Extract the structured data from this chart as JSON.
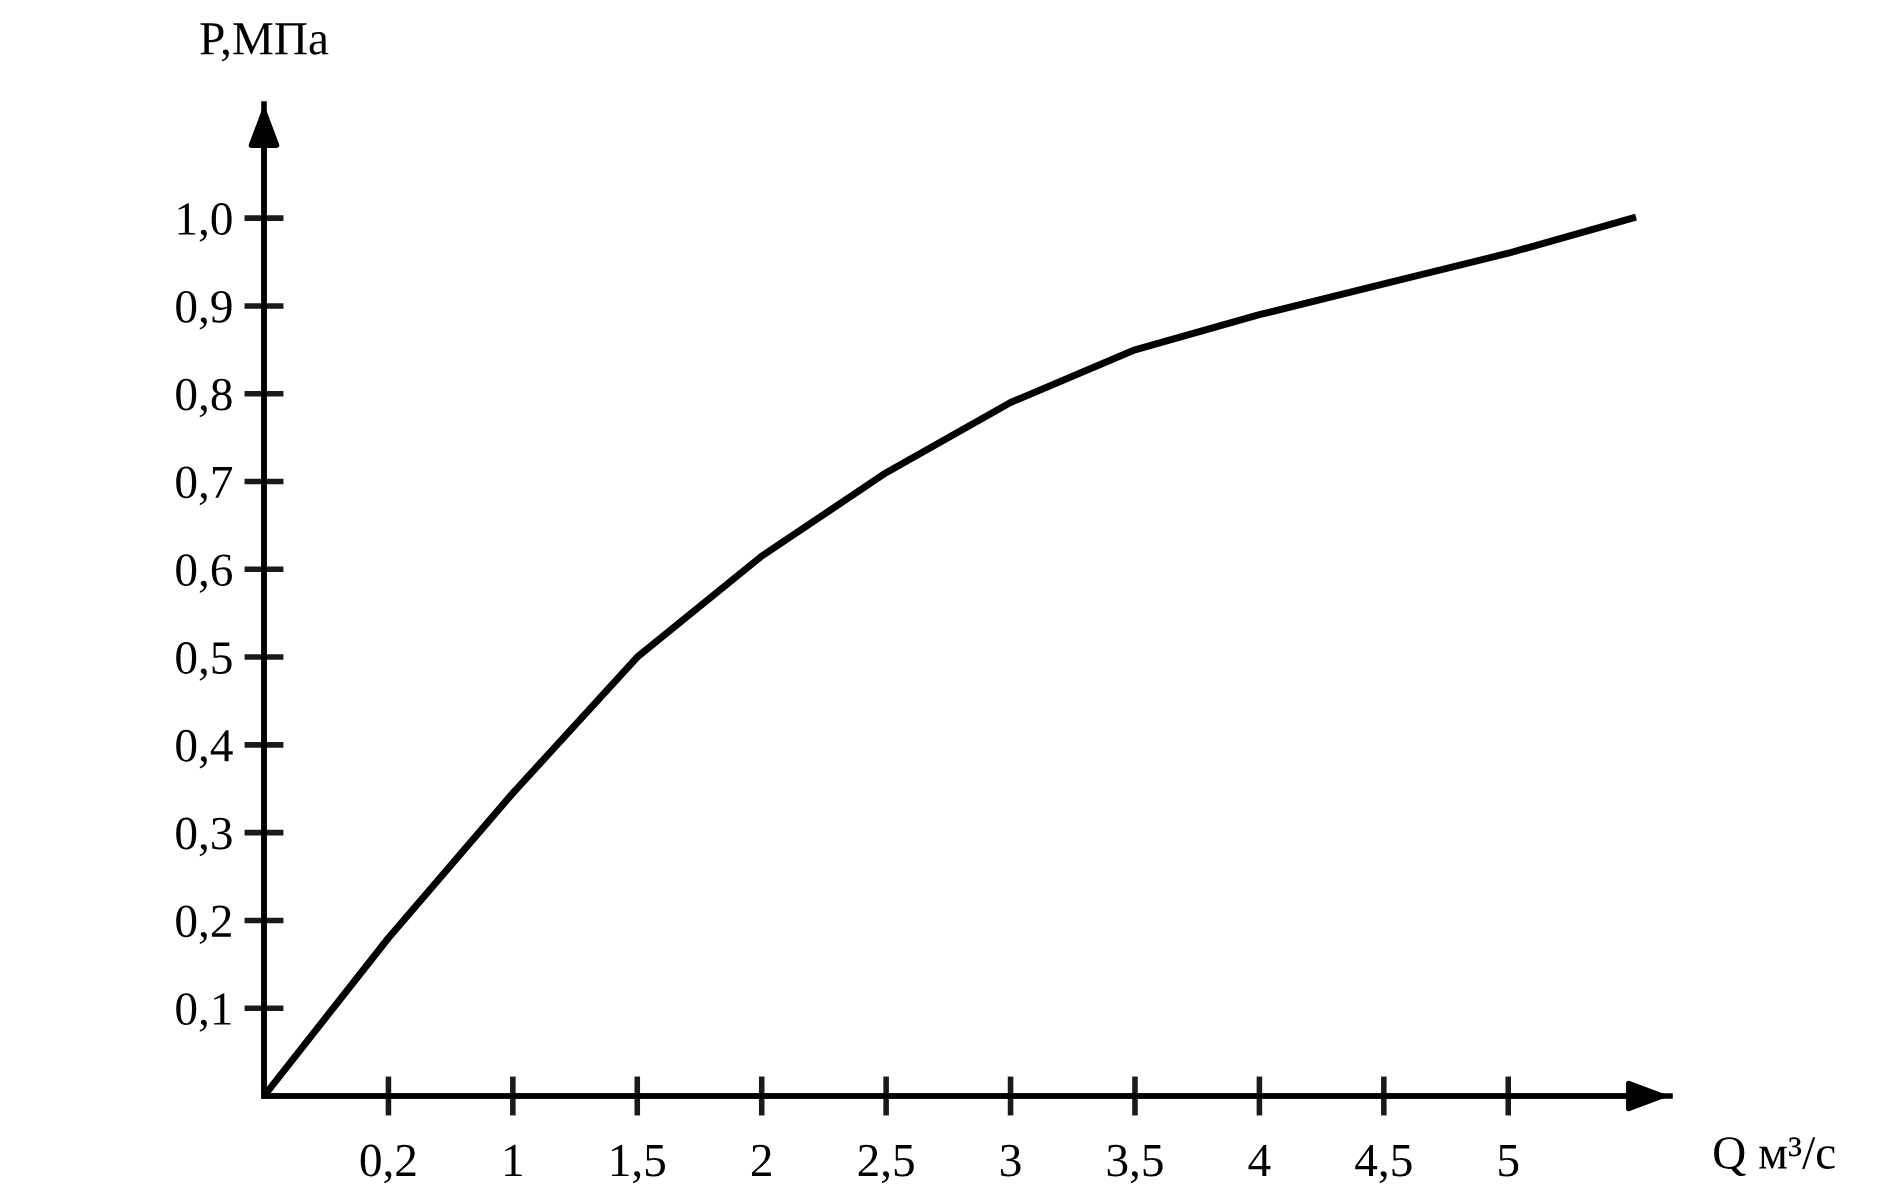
{
  "chart_data": {
    "type": "line",
    "xlabel": "Q м³/с",
    "ylabel": "P,МПа",
    "categories": [
      null,
      "0,2",
      "1",
      "1,5",
      "2",
      "2,5",
      "3",
      "3,5",
      "4",
      "4,5",
      "5",
      null
    ],
    "series": [
      {
        "color": "#000000",
        "values": [
          0,
          0.18,
          0.345,
          0.5,
          0.615,
          0.71,
          0.79,
          0.85,
          0.89,
          0.925,
          0.96,
          1.0
        ]
      }
    ],
    "ylim": [
      0,
      1.13
    ],
    "yticks": [
      {
        "value": 0.1,
        "label": "0,1"
      },
      {
        "value": 0.2,
        "label": "0,2"
      },
      {
        "value": 0.3,
        "label": "0,3"
      },
      {
        "value": 0.4,
        "label": "0,4"
      },
      {
        "value": 0.5,
        "label": "0,5"
      },
      {
        "value": 0.6,
        "label": "0,6"
      },
      {
        "value": 0.7,
        "label": "0,7"
      },
      {
        "value": 0.8,
        "label": "0,8"
      },
      {
        "value": 0.9,
        "label": "0,9"
      },
      {
        "value": 1.0,
        "label": "1,0"
      }
    ],
    "grid": false,
    "legend": false,
    "marker": "none",
    "line_style": "solid"
  }
}
